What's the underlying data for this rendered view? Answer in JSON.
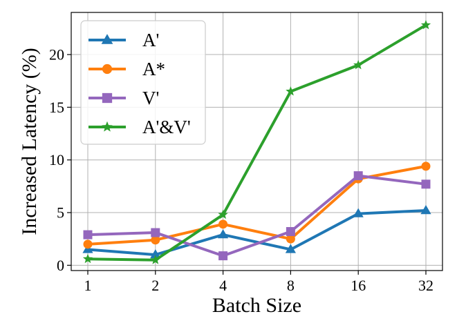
{
  "chart_data": {
    "type": "line",
    "categories": [
      "1",
      "2",
      "4",
      "8",
      "16",
      "32"
    ],
    "xlabel": "Batch Size",
    "ylabel": "Increased Latency (%)",
    "ylim": [
      -0.5,
      24
    ],
    "yticks": [
      0,
      5,
      10,
      15,
      20
    ],
    "ytick_labels": [
      "0",
      "5",
      "10",
      "15",
      "20"
    ],
    "grid": true,
    "legend_position": "top-left",
    "series": [
      {
        "name": "A'",
        "color": "#1f77b4",
        "marker": "triangle",
        "values": [
          1.5,
          1.0,
          2.9,
          1.5,
          4.9,
          5.2
        ]
      },
      {
        "name": "A*",
        "color": "#ff7f0e",
        "marker": "circle",
        "values": [
          2.0,
          2.4,
          3.9,
          2.5,
          8.2,
          9.4
        ]
      },
      {
        "name": "V'",
        "color": "#9467bd",
        "marker": "square",
        "values": [
          2.9,
          3.1,
          0.9,
          3.2,
          8.5,
          7.7
        ]
      },
      {
        "name": "A'&V'",
        "color": "#2ca02c",
        "marker": "star",
        "values": [
          0.6,
          0.5,
          4.8,
          16.5,
          19.0,
          22.8
        ]
      }
    ]
  }
}
